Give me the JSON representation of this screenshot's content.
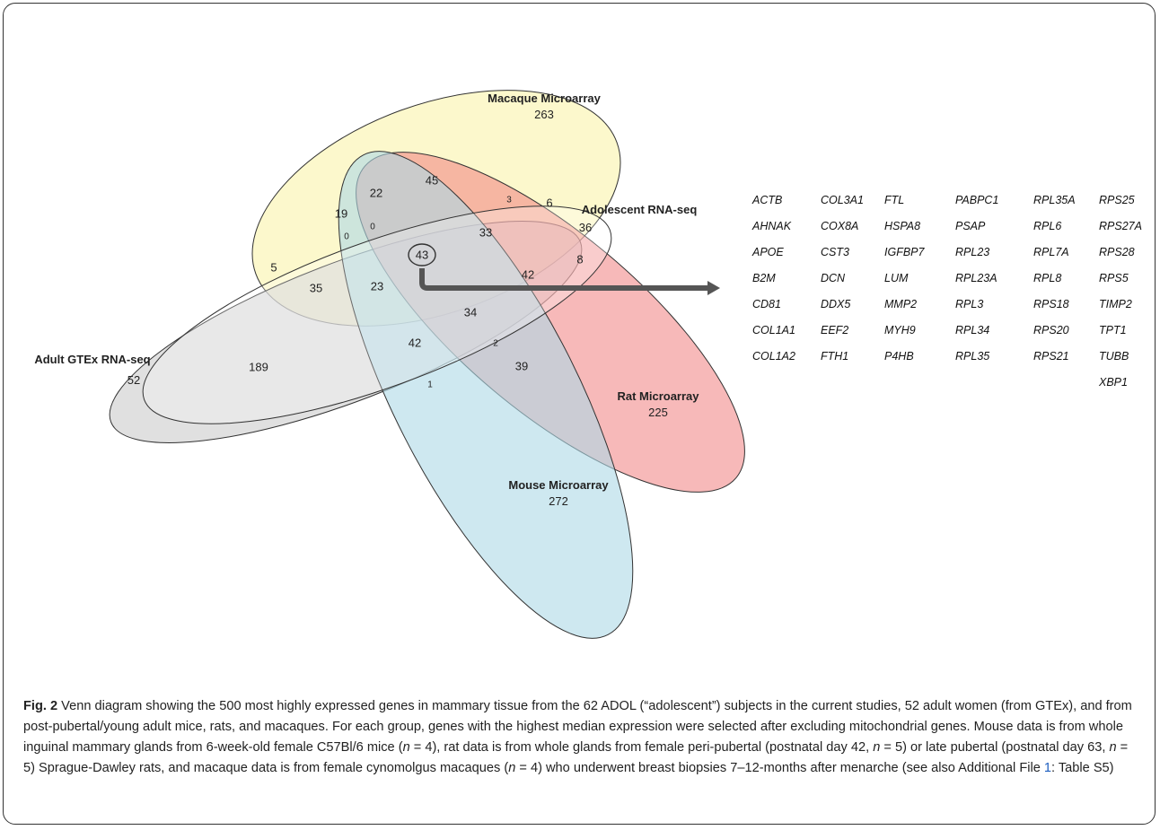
{
  "sets": {
    "macaque": {
      "name": "Macaque Microarray",
      "count": "263",
      "color": "#fbf7c3"
    },
    "adolescent": {
      "name": "Adolescent RNA-seq",
      "count": "36",
      "color": "#ffffff"
    },
    "adult": {
      "name": "Adult GTEx RNA-seq",
      "count": "52",
      "color": "#d8d8d8"
    },
    "rat": {
      "name": "Rat Microarray",
      "count": "225",
      "color": "#f08080"
    },
    "mouse": {
      "name": "Mouse Microarray",
      "count": "272",
      "color": "#add8e6"
    }
  },
  "regions": {
    "r45": "45",
    "r22": "22",
    "r19": "19",
    "r3": "3",
    "r6": "6",
    "r0a": "0",
    "r0b": "0",
    "r33": "33",
    "r43": "43",
    "r8": "8",
    "r5": "5",
    "r35": "35",
    "r23": "23",
    "r42a": "42",
    "r34": "34",
    "r42b": "42",
    "r2": "2",
    "r189": "189",
    "r39": "39",
    "r1": "1"
  },
  "genes": [
    [
      "ACTB",
      "AHNAK",
      "APOE",
      "B2M",
      "CD81",
      "COL1A1",
      "COL1A2"
    ],
    [
      "COL3A1",
      "COX8A",
      "CST3",
      "DCN",
      "DDX5",
      "EEF2",
      "FTH1"
    ],
    [
      "FTL",
      "HSPA8",
      "IGFBP7",
      "LUM",
      "MMP2",
      "MYH9",
      "P4HB"
    ],
    [
      "PABPC1",
      "PSAP",
      "RPL23",
      "RPL23A",
      "RPL3",
      "RPL34",
      "RPL35"
    ],
    [
      "RPL35A",
      "RPL6",
      "RPL7A",
      "RPL8",
      "RPS18",
      "RPS20",
      "RPS21"
    ],
    [
      "RPS25",
      "RPS27A",
      "RPS28",
      "RPS5",
      "TIMP2",
      "TPT1",
      "TUBB",
      "XBP1"
    ]
  ],
  "caption": {
    "fig": "Fig. 2",
    "p1": " Venn diagram showing the 500 most highly expressed genes in mammary tissue from the 62 ADOL (“adolescent”) subjects in the current studies, 52 adult women (from GTEx), and from post-pubertal/young adult mice, rats, and macaques. For each group, genes with the highest median expression were selected after excluding mitochondrial genes. Mouse data is from whole inguinal mammary glands from 6-week-old female C57Bl/6 mice (",
    "n": "n",
    "p2": " = 4), rat data is from whole glands from female peri-pubertal (postnatal day 42, ",
    "p3": " = 5) or late pubertal (postnatal day 63, ",
    "p4": " = 5) Sprague-Dawley rats, and macaque data is from female cynomolgus macaques (",
    "p5": " = 4) who underwent breast biopsies 7–12-months after menarche (see also Additional File ",
    "link": "1",
    "p6": ": Table S5)"
  }
}
